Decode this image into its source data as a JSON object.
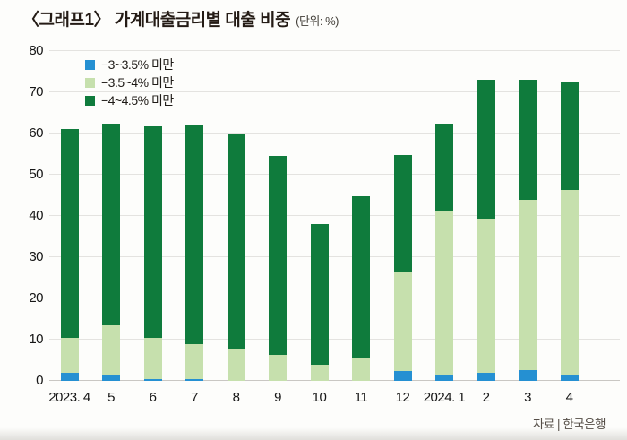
{
  "title": {
    "main": "〈그래프1〉 가계대출금리별 대출 비중",
    "unit": "(단위: %)"
  },
  "footer": {
    "source": "자료 | 한국은행"
  },
  "chart_data": {
    "type": "bar",
    "stacked": true,
    "title": "가계대출금리별 대출 비중",
    "unit": "%",
    "categories": [
      "2023. 4",
      "5",
      "6",
      "7",
      "8",
      "9",
      "10",
      "11",
      "12",
      "2024. 1",
      "2",
      "3",
      "4"
    ],
    "series": [
      {
        "name": "−3~3.5% 미만",
        "color": "#2590d2",
        "values": [
          2.0,
          1.3,
          0.5,
          0.4,
          0,
          0,
          0,
          0,
          2.4,
          1.5,
          2.0,
          2.6,
          1.6
        ]
      },
      {
        "name": "−3.5~4% 미만",
        "color": "#c6e0ad",
        "values": [
          8.5,
          12.2,
          9.9,
          8.6,
          7.7,
          6.2,
          4.0,
          5.6,
          24.2,
          39.5,
          37.4,
          41.4,
          44.7
        ]
      },
      {
        "name": "−4~4.5% 미만",
        "color": "#0f7b3c",
        "values": [
          50.7,
          48.9,
          51.4,
          53.0,
          52.3,
          48.3,
          34.0,
          39.1,
          28.2,
          21.5,
          33.6,
          29.0,
          26.2
        ]
      }
    ],
    "totals": [
      61.2,
      62.4,
      61.8,
      62.0,
      60.0,
      54.5,
      38.0,
      44.7,
      54.8,
      62.5,
      73.0,
      73.0,
      72.5
    ],
    "ylim": [
      0,
      80
    ],
    "yticks": [
      0,
      10,
      20,
      30,
      40,
      50,
      60,
      70,
      80
    ],
    "grid": true,
    "legend_position": "top-left"
  }
}
